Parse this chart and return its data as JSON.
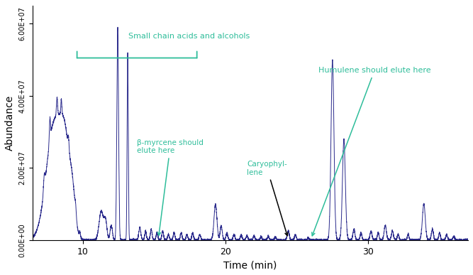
{
  "xlabel": "Time (min)",
  "ylabel": "Abundance",
  "xlim": [
    6.5,
    37
  ],
  "ylim": [
    0,
    65000000.0
  ],
  "yticks": [
    0,
    20000000.0,
    40000000.0,
    60000000.0
  ],
  "ytick_labels": [
    "0.00E+00",
    "2.00E+07",
    "4.00E+07",
    "6.00E+07"
  ],
  "line_color": "#2a2a8c",
  "annotation_color": "#2ebd9a",
  "background_color": "#ffffff",
  "xticks": [
    10,
    20,
    30
  ]
}
